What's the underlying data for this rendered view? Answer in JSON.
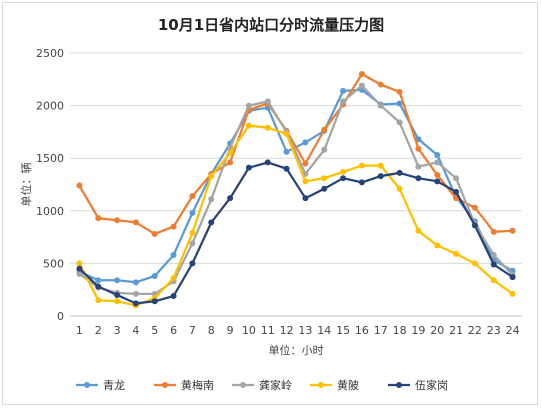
{
  "chart_data": {
    "type": "line",
    "title": "10月1日省内站口分时流量压力图",
    "xlabel": "单位：小时",
    "ylabel": "单位：辆",
    "categories": [
      "1",
      "2",
      "3",
      "4",
      "5",
      "6",
      "7",
      "8",
      "9",
      "10",
      "11",
      "12",
      "13",
      "14",
      "15",
      "16",
      "17",
      "18",
      "19",
      "20",
      "21",
      "22",
      "23",
      "24"
    ],
    "ylim": [
      0,
      2500
    ],
    "yticks": [
      0,
      500,
      1000,
      1500,
      2000,
      2500
    ],
    "grid": "horizontal",
    "legend_position": "bottom",
    "series": [
      {
        "name": "青龙",
        "color": "#5b9bd5",
        "values": [
          420,
          340,
          340,
          320,
          380,
          580,
          980,
          1350,
          1640,
          1950,
          1980,
          1560,
          1650,
          1760,
          2140,
          2150,
          2010,
          2020,
          1680,
          1530,
          1130,
          900,
          530,
          430
        ]
      },
      {
        "name": "黄梅南",
        "color": "#ed7d31",
        "values": [
          1240,
          930,
          910,
          890,
          780,
          850,
          1140,
          1350,
          1460,
          1960,
          2020,
          1760,
          1450,
          1770,
          2010,
          2300,
          2200,
          2130,
          1590,
          1340,
          1120,
          1030,
          800,
          810
        ]
      },
      {
        "name": "龚家岭",
        "color": "#a5a5a5",
        "values": [
          400,
          270,
          220,
          210,
          210,
          330,
          690,
          1110,
          1600,
          2000,
          2040,
          1750,
          1350,
          1580,
          2040,
          2190,
          2000,
          1840,
          1420,
          1460,
          1310,
          870,
          580,
          390
        ]
      },
      {
        "name": "黄陂",
        "color": "#ffc000",
        "values": [
          500,
          150,
          140,
          100,
          170,
          360,
          790,
          1330,
          1550,
          1810,
          1790,
          1730,
          1280,
          1310,
          1370,
          1430,
          1430,
          1210,
          810,
          670,
          590,
          500,
          340,
          210
        ]
      },
      {
        "name": "伍家岗",
        "color": "#264478",
        "values": [
          450,
          280,
          200,
          120,
          140,
          190,
          500,
          890,
          1120,
          1410,
          1460,
          1400,
          1120,
          1210,
          1310,
          1270,
          1330,
          1360,
          1310,
          1280,
          1180,
          860,
          490,
          370
        ]
      }
    ]
  }
}
